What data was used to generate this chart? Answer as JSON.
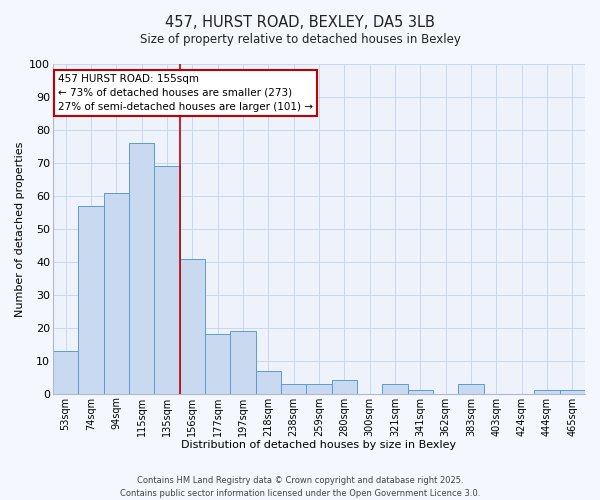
{
  "title1": "457, HURST ROAD, BEXLEY, DA5 3LB",
  "title2": "Size of property relative to detached houses in Bexley",
  "xlabel": "Distribution of detached houses by size in Bexley",
  "ylabel": "Number of detached properties",
  "categories": [
    "53sqm",
    "74sqm",
    "94sqm",
    "115sqm",
    "135sqm",
    "156sqm",
    "177sqm",
    "197sqm",
    "218sqm",
    "238sqm",
    "259sqm",
    "280sqm",
    "300sqm",
    "321sqm",
    "341sqm",
    "362sqm",
    "383sqm",
    "403sqm",
    "424sqm",
    "444sqm",
    "465sqm"
  ],
  "values": [
    13,
    57,
    61,
    76,
    69,
    41,
    18,
    19,
    7,
    3,
    3,
    4,
    0,
    3,
    1,
    0,
    3,
    0,
    0,
    1,
    1
  ],
  "bar_color": "#c9d9f0",
  "bar_edge_color": "#5b9bd5",
  "property_line_idx": 5,
  "property_line_color": "#c00000",
  "annotation_text": "457 HURST ROAD: 155sqm\n← 73% of detached houses are smaller (273)\n27% of semi-detached houses are larger (101) →",
  "annotation_box_color": "#ffffff",
  "annotation_box_edge_color": "#c00000",
  "ylim": [
    0,
    100
  ],
  "yticks": [
    0,
    10,
    20,
    30,
    40,
    50,
    60,
    70,
    80,
    90,
    100
  ],
  "grid_color": "#c8d8ee",
  "bg_color": "#eef2fb",
  "fig_bg_color": "#f4f7fd",
  "footer1": "Contains HM Land Registry data © Crown copyright and database right 2025.",
  "footer2": "Contains public sector information licensed under the Open Government Licence 3.0."
}
